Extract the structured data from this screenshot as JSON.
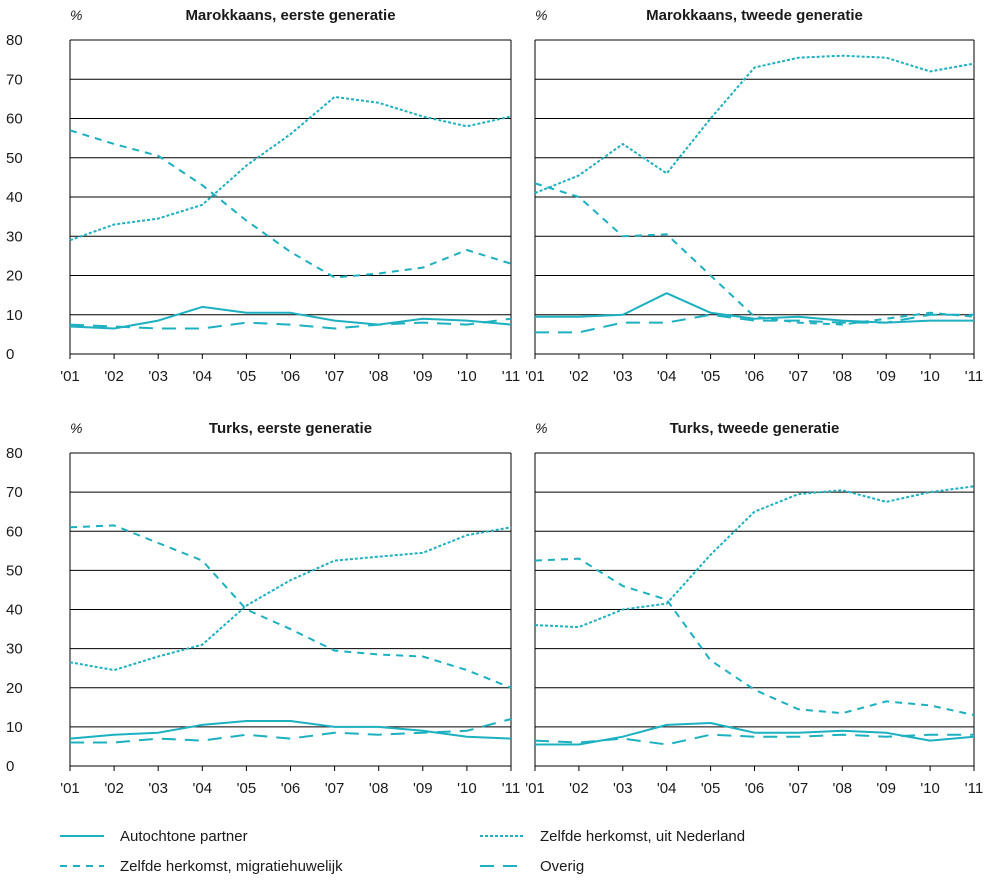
{
  "colors": {
    "series": "#1cb0c1",
    "grid": "#000000",
    "text": "#1a1a1a"
  },
  "unit_label": "%",
  "x_tick_labels": [
    "'01",
    "'02",
    "'03",
    "'04",
    "'05",
    "'06",
    "'07",
    "'08",
    "'09",
    "'10",
    "'11"
  ],
  "y_tick_labels": [
    "0",
    "10",
    "20",
    "30",
    "40",
    "50",
    "60",
    "70",
    "80"
  ],
  "legend": [
    {
      "label": "Autochtone partner",
      "style": "solid"
    },
    {
      "label": "Zelfde herkomst, uit Nederland",
      "style": "dotted"
    },
    {
      "label": "Zelfde herkomst, migratiehuwelijk",
      "style": "dashed"
    },
    {
      "label": "Overig",
      "style": "longdash"
    }
  ],
  "chart_data": [
    {
      "type": "line",
      "title": "Marokkaans, eerste generatie",
      "ylabel": "%",
      "ylim": [
        0,
        80
      ],
      "x": [
        "'01",
        "'02",
        "'03",
        "'04",
        "'05",
        "'06",
        "'07",
        "'08",
        "'09",
        "'10",
        "'11"
      ],
      "series": [
        {
          "name": "Autochtone partner",
          "style": "solid",
          "values": [
            7,
            6.5,
            8.5,
            12,
            10.5,
            10.5,
            8.5,
            7.5,
            9,
            8.5,
            7.5
          ]
        },
        {
          "name": "Zelfde herkomst, uit Nederland",
          "style": "dotted",
          "values": [
            29,
            33,
            34.5,
            38,
            48,
            56,
            65.5,
            64,
            60.5,
            58,
            60.5
          ]
        },
        {
          "name": "Zelfde herkomst, migratiehuwelijk",
          "style": "dashed",
          "values": [
            57,
            53.5,
            50.5,
            43,
            34,
            26,
            19.5,
            20.5,
            22,
            26.5,
            23
          ]
        },
        {
          "name": "Overig",
          "style": "longdash",
          "values": [
            7.5,
            7,
            6.5,
            6.5,
            8,
            7.5,
            6.5,
            7.5,
            8,
            7.5,
            9
          ]
        }
      ]
    },
    {
      "type": "line",
      "title": "Marokkaans, tweede generatie",
      "ylabel": "%",
      "ylim": [
        0,
        80
      ],
      "x": [
        "'01",
        "'02",
        "'03",
        "'04",
        "'05",
        "'06",
        "'07",
        "'08",
        "'09",
        "'10",
        "'11"
      ],
      "series": [
        {
          "name": "Autochtone partner",
          "style": "solid",
          "values": [
            9.5,
            9.5,
            10,
            15.5,
            10.5,
            9,
            9.5,
            8.5,
            8,
            8.5,
            8.5
          ]
        },
        {
          "name": "Zelfde herkomst, uit Nederland",
          "style": "dotted",
          "values": [
            41,
            45.5,
            53.5,
            46,
            60,
            73,
            75.5,
            76,
            75.5,
            72,
            74
          ]
        },
        {
          "name": "Zelfde herkomst, migratiehuwelijk",
          "style": "dashed",
          "values": [
            43.5,
            40,
            30,
            30.5,
            20,
            9.5,
            8,
            7.5,
            9,
            10.5,
            9.5
          ]
        },
        {
          "name": "Overig",
          "style": "longdash",
          "values": [
            5.5,
            5.5,
            8,
            8,
            10,
            8.5,
            8.5,
            8,
            8,
            10,
            10
          ]
        }
      ]
    },
    {
      "type": "line",
      "title": "Turks, eerste generatie",
      "ylabel": "%",
      "ylim": [
        0,
        80
      ],
      "x": [
        "'01",
        "'02",
        "'03",
        "'04",
        "'05",
        "'06",
        "'07",
        "'08",
        "'09",
        "'10",
        "'11"
      ],
      "series": [
        {
          "name": "Autochtone partner",
          "style": "solid",
          "values": [
            7,
            8,
            8.5,
            10.5,
            11.5,
            11.5,
            10,
            10,
            9,
            7.5,
            7
          ]
        },
        {
          "name": "Zelfde herkomst, uit Nederland",
          "style": "dotted",
          "values": [
            26.5,
            24.5,
            28,
            31,
            41,
            47.5,
            52.5,
            53.5,
            54.5,
            59,
            61
          ]
        },
        {
          "name": "Zelfde herkomst, migratiehuwelijk",
          "style": "dashed",
          "values": [
            61,
            61.5,
            57,
            52.5,
            40,
            35,
            29.5,
            28.5,
            28,
            24.5,
            20
          ]
        },
        {
          "name": "Overig",
          "style": "longdash",
          "values": [
            6,
            6,
            7,
            6.5,
            8,
            7,
            8.5,
            8,
            8.5,
            9,
            12
          ]
        }
      ]
    },
    {
      "type": "line",
      "title": "Turks, tweede generatie",
      "ylabel": "%",
      "ylim": [
        0,
        80
      ],
      "x": [
        "'01",
        "'02",
        "'03",
        "'04",
        "'05",
        "'06",
        "'07",
        "'08",
        "'09",
        "'10",
        "'11"
      ],
      "series": [
        {
          "name": "Autochtone partner",
          "style": "solid",
          "values": [
            5.5,
            5.5,
            7.5,
            10.5,
            11,
            8.5,
            8.5,
            9,
            8.5,
            6.5,
            7.5
          ]
        },
        {
          "name": "Zelfde herkomst, uit Nederland",
          "style": "dotted",
          "values": [
            36,
            35.5,
            40,
            41.5,
            54,
            65,
            69.5,
            70.5,
            67.5,
            70,
            71.5
          ]
        },
        {
          "name": "Zelfde herkomst, migratiehuwelijk",
          "style": "dashed",
          "values": [
            52.5,
            53,
            46,
            42.5,
            27,
            19.5,
            14.5,
            13.5,
            16.5,
            15.5,
            13
          ]
        },
        {
          "name": "Overig",
          "style": "longdash",
          "values": [
            6.5,
            6,
            7,
            5.5,
            8,
            7.5,
            7.5,
            8,
            7.5,
            8,
            8
          ]
        }
      ]
    }
  ]
}
